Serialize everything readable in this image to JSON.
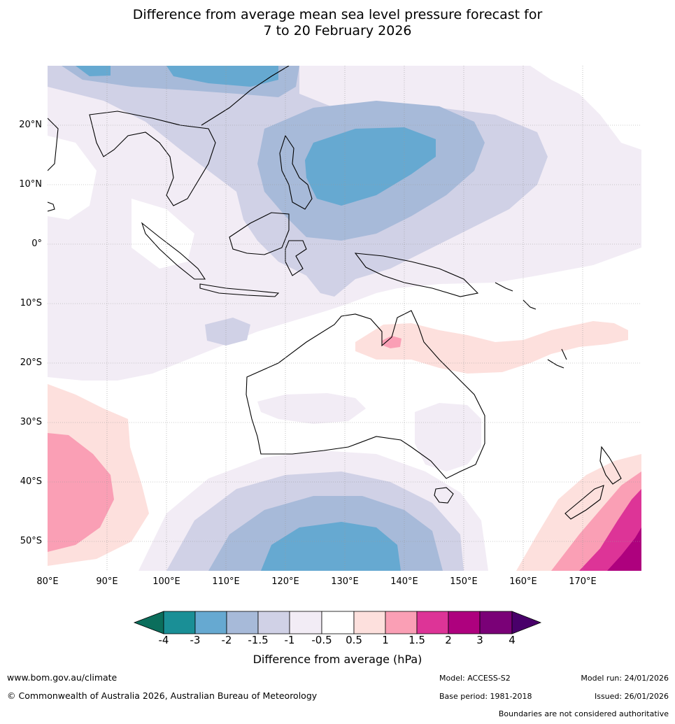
{
  "title": {
    "line1": "Difference from average mean sea level pressure forecast for",
    "line2": "7 to 20 February 2026"
  },
  "map": {
    "lat_labels": [
      "20°N",
      "10°N",
      "0°",
      "10°S",
      "20°S",
      "30°S",
      "40°S",
      "50°S"
    ],
    "lon_labels": [
      "80°E",
      "90°E",
      "100°E",
      "110°E",
      "120°E",
      "130°E",
      "140°E",
      "150°E",
      "160°E",
      "170°E"
    ],
    "region": "Australia, Maritime Continent, Southeast Asia and surrounding oceans",
    "colors": {
      "n4": "#1a8f96",
      "n3": "#66a9d1",
      "n2": "#a7bad9",
      "n15": "#d0d1e6",
      "n1": "#f2ecf5",
      "zero": "#ffffff",
      "p05": "#fde0dd",
      "p1": "#fa9fb5",
      "p15": "#dd3497",
      "p2": "#ae017e",
      "p3": "#7a0177",
      "p4": "#49006a",
      "lowest": "#0b6e5c"
    }
  },
  "colorbar": {
    "tick_labels": [
      "-4",
      "-3",
      "-2",
      "-1.5",
      "-1",
      "-0.5",
      "0.5",
      "1",
      "1.5",
      "2",
      "3",
      "4"
    ],
    "title": "Difference from average (hPa)"
  },
  "footer": {
    "website": "www.bom.gov.au/climate",
    "copyright": "© Commonwealth of Australia 2026, Australian Bureau of Meteorology",
    "model": "Model: ACCESS-S2",
    "base_period": "Base period: 1981-2018",
    "model_run": "Model run: 24/01/2026",
    "issued": "Issued: 26/01/2026",
    "disclaimer": "Boundaries are not considered authoritative"
  }
}
